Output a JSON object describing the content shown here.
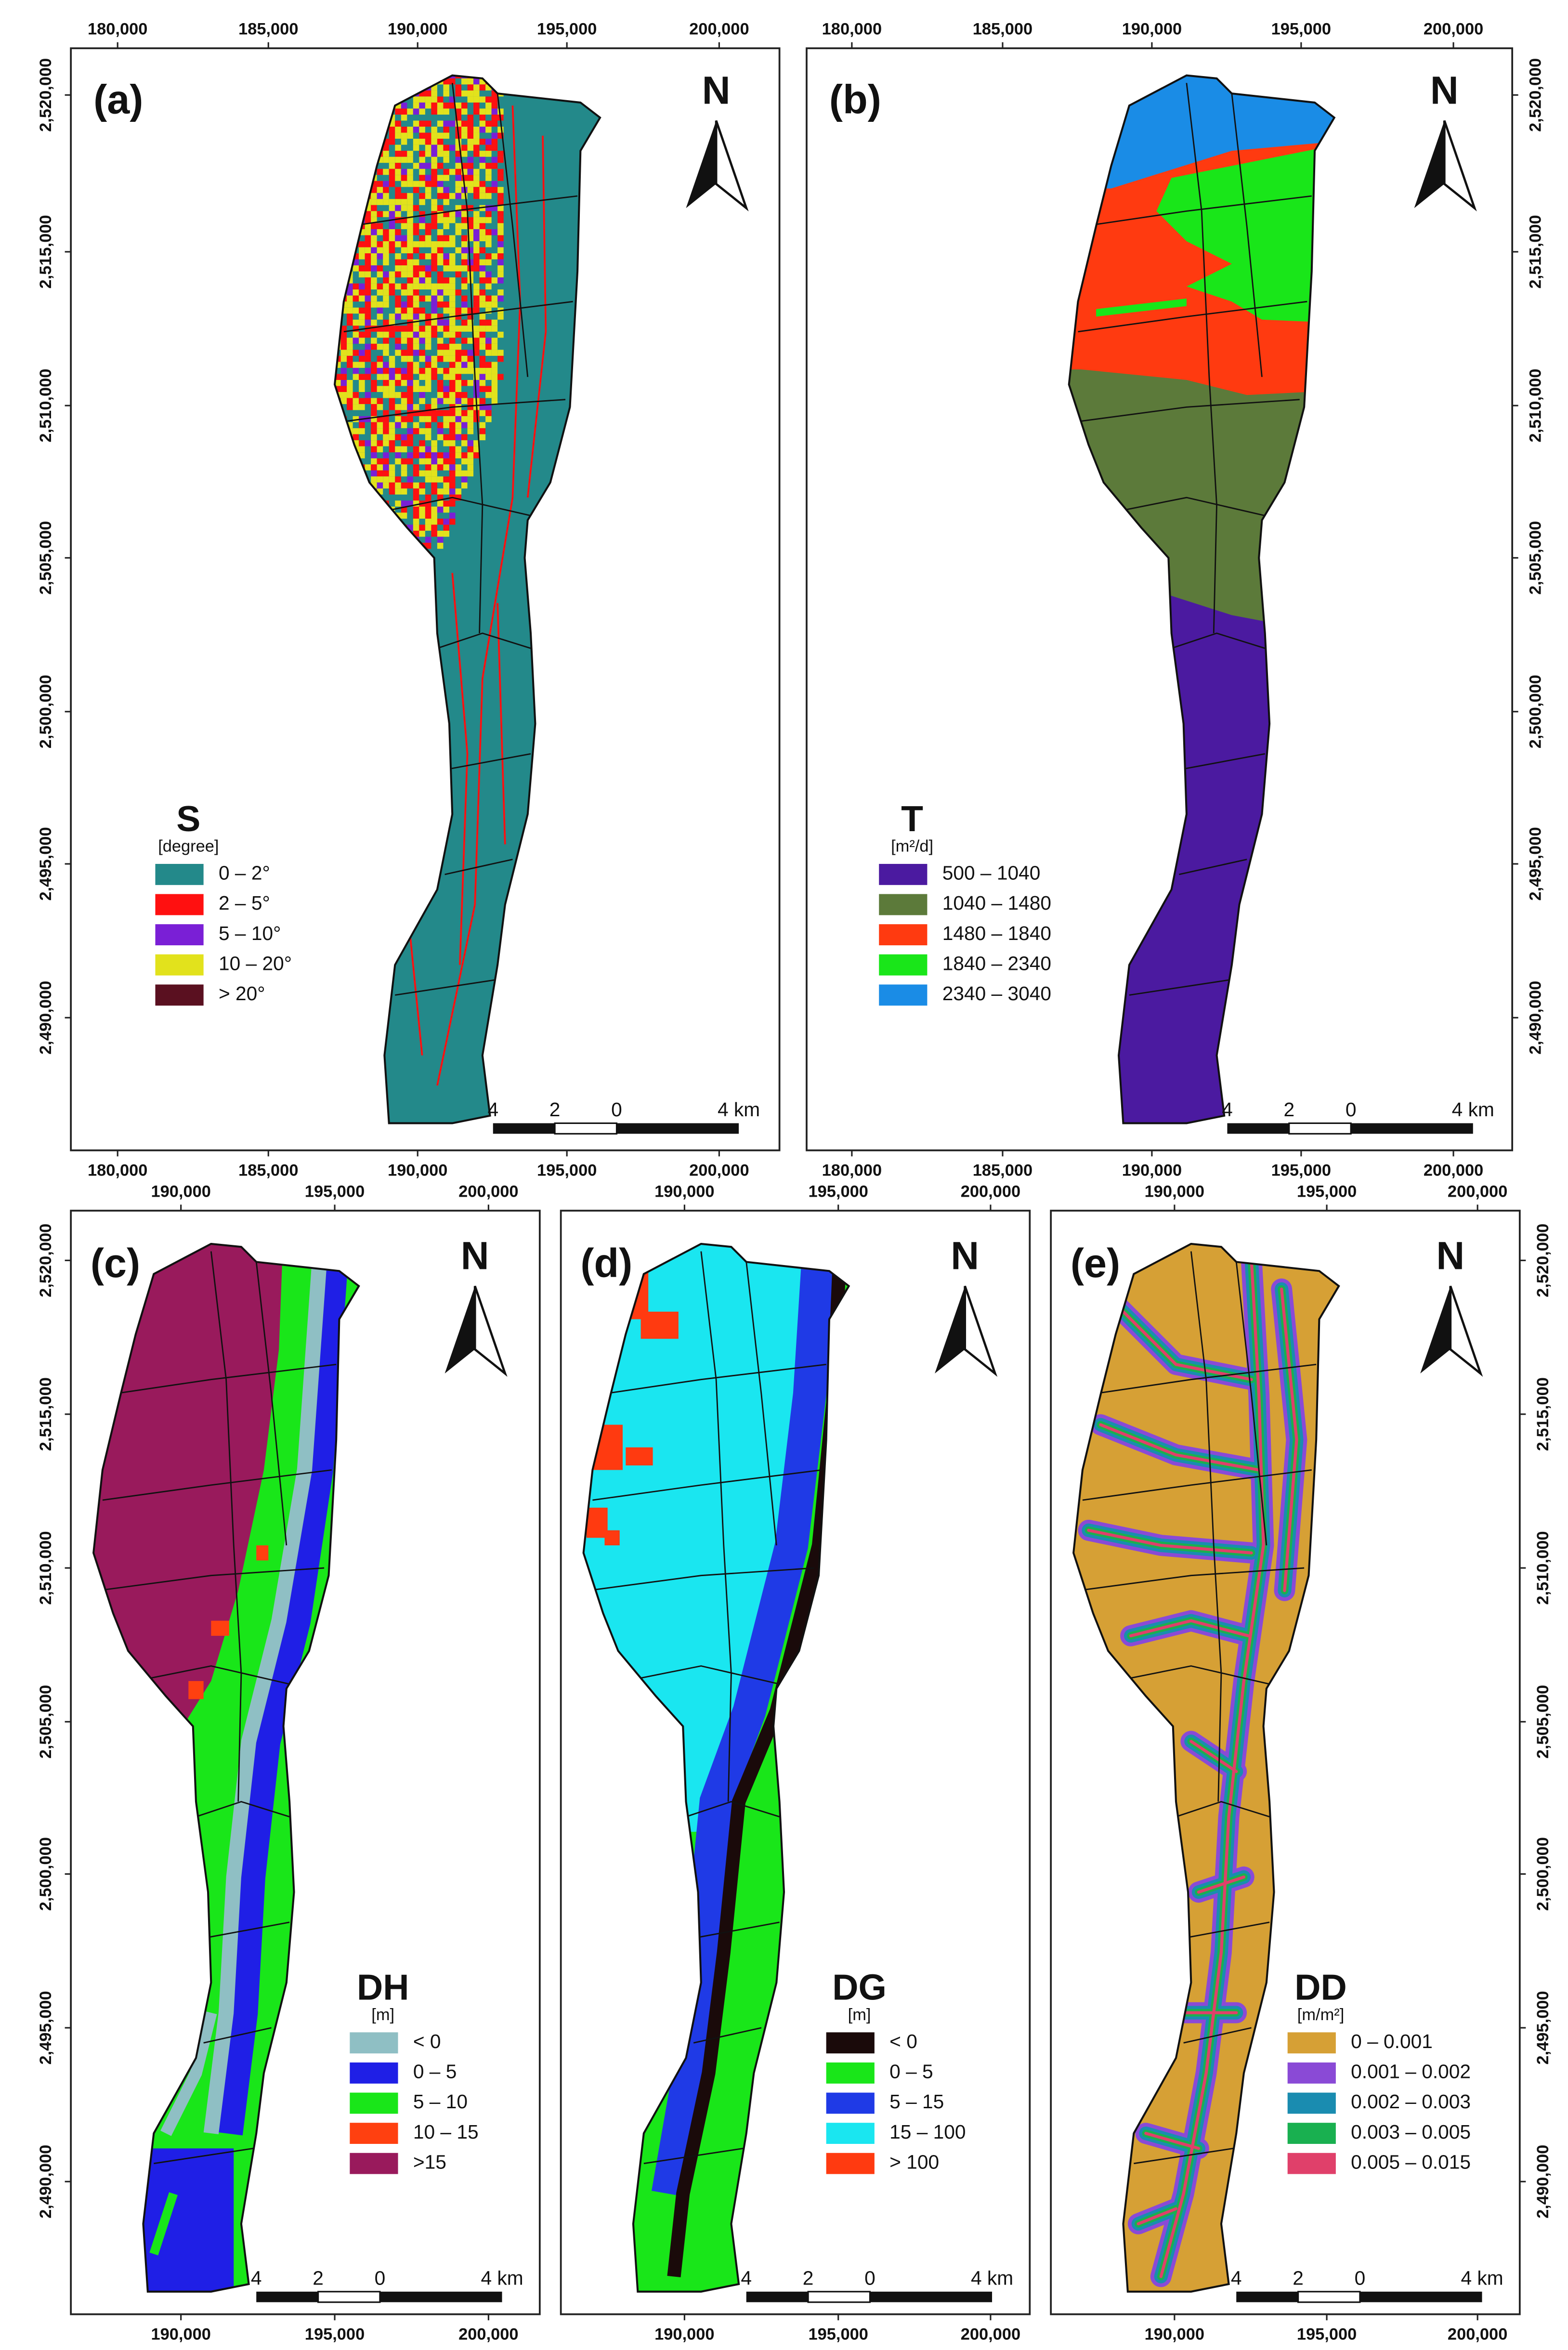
{
  "panels": [
    {
      "label": "(a)",
      "north": "N",
      "top_ticks": [
        "180,000",
        "185,000",
        "190,000",
        "195,000",
        "200,000"
      ],
      "bottom_ticks": [
        "180,000",
        "185,000",
        "190,000",
        "195,000",
        "200,000"
      ],
      "side_ticks": [
        "2,520,000",
        "2,515,000",
        "2,510,000",
        "2,505,000",
        "2,500,000",
        "2,495,000",
        "2,490,000"
      ],
      "legend": {
        "title": "S",
        "unit": "[degree]",
        "items": [
          {
            "label": "0  –  2°",
            "color": "#23898a"
          },
          {
            "label": "2  –  5°",
            "color": "#ff1010"
          },
          {
            "label": "5  –  10°",
            "color": "#7a1fd6"
          },
          {
            "label": "10  –  20°",
            "color": "#e2e21c"
          },
          {
            "label": ">  20°",
            "color": "#5a1020"
          }
        ]
      },
      "scale_bar": [
        "4",
        "2",
        "0",
        "4 km"
      ]
    },
    {
      "label": "(b)",
      "north": "N",
      "top_ticks": [
        "180,000",
        "185,000",
        "190,000",
        "195,000",
        "200,000"
      ],
      "bottom_ticks": [
        "180,000",
        "185,000",
        "190,000",
        "195,000",
        "200,000"
      ],
      "side_ticks": [
        "2,520,000",
        "2,515,000",
        "2,510,000",
        "2,505,000",
        "2,500,000",
        "2,495,000",
        "2,490,000"
      ],
      "legend": {
        "title": "T",
        "unit": "[m²/d]",
        "items": [
          {
            "label": "500   –  1040",
            "color": "#4b1aa0"
          },
          {
            "label": "1040  –  1480",
            "color": "#5c7a3a"
          },
          {
            "label": "1480  –  1840",
            "color": "#ff3a10"
          },
          {
            "label": "1840  –  2340",
            "color": "#19e619"
          },
          {
            "label": "2340  –  3040",
            "color": "#1a8ce6"
          }
        ]
      },
      "scale_bar": [
        "4",
        "2",
        "0",
        "4 km"
      ]
    },
    {
      "label": "(c)",
      "north": "N",
      "top_ticks": [
        "190,000",
        "195,000",
        "200,000"
      ],
      "bottom_ticks": [
        "190,000",
        "195,000",
        "200,000"
      ],
      "side_ticks": [
        "2,520,000",
        "2,515,000",
        "2,510,000",
        "2,505,000",
        "2,500,000",
        "2,495,000",
        "2,490,000"
      ],
      "legend": {
        "title": "DH",
        "unit": "[m]",
        "items": [
          {
            "label": "< 0",
            "color": "#8fbfc4"
          },
          {
            "label": "0  – 5",
            "color": "#1f1fe6"
          },
          {
            "label": "5  – 10",
            "color": "#19e619"
          },
          {
            "label": "10  – 15",
            "color": "#ff4010"
          },
          {
            "label": ">15",
            "color": "#991a5c"
          }
        ]
      },
      "scale_bar": [
        "4",
        "2",
        "0",
        "4 km"
      ]
    },
    {
      "label": "(d)",
      "north": "N",
      "top_ticks": [
        "190,000",
        "195,000",
        "200,000"
      ],
      "bottom_ticks": [
        "190,000",
        "195,000",
        "200,000"
      ],
      "legend": {
        "title": "DG",
        "unit": "[m]",
        "items": [
          {
            "label": "< 0",
            "color": "#1a0a0a"
          },
          {
            "label": "0  –  5",
            "color": "#19e619"
          },
          {
            "label": "5  –  15",
            "color": "#1f3ae6"
          },
          {
            "label": "15  –  100",
            "color": "#1ae6f0"
          },
          {
            "label": "> 100",
            "color": "#ff3a10"
          }
        ]
      },
      "scale_bar": [
        "4",
        "2",
        "0",
        "4 km"
      ]
    },
    {
      "label": "(e)",
      "north": "N",
      "top_ticks": [
        "190,000",
        "195,000",
        "200,000"
      ],
      "bottom_ticks": [
        "190,000",
        "195,000",
        "200,000"
      ],
      "side_ticks": [
        "2,520,000",
        "2,515,000",
        "2,510,000",
        "2,505,000",
        "2,500,000",
        "2,495,000",
        "2,490,000"
      ],
      "legend": {
        "title": "DD",
        "unit": "[m/m²]",
        "items": [
          {
            "label": "0 – 0.001",
            "color": "#d6a035"
          },
          {
            "label": "0.001 – 0.002",
            "color": "#8a4ad6"
          },
          {
            "label": "0.002 – 0.003",
            "color": "#1a8cb0"
          },
          {
            "label": "0.003 – 0.005",
            "color": "#19b050"
          },
          {
            "label": "0.005 – 0.015",
            "color": "#e0406a"
          }
        ]
      },
      "scale_bar": [
        "4",
        "2",
        "0",
        "4 km"
      ]
    }
  ]
}
